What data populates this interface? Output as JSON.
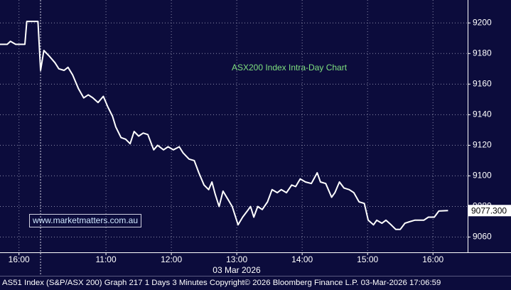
{
  "chart_data": {
    "type": "line",
    "title": "ASX200 Index Intra-Day Chart",
    "watermark": "www.marketmatters.com.au",
    "x_label": "03 Mar 2026",
    "footer": "AS51 Index (S&P/ASX 200) Graph 217 1 Days 3 Minutes Copyright© 2026 Bloomberg Finance L.P. 03-Mar-2026 17:06:59",
    "x": [
      9.38,
      9.49,
      9.54,
      9.62,
      9.76,
      9.79,
      9.96,
      10,
      10.05,
      10.14,
      10.22,
      10.28,
      10.36,
      10.42,
      10.49,
      10.58,
      10.66,
      10.73,
      10.8,
      10.88,
      10.96,
      11.03,
      11.1,
      11.15,
      11.23,
      11.3,
      11.37,
      11.43,
      11.5,
      11.57,
      11.64,
      11.73,
      11.79,
      11.88,
      11.95,
      12.03,
      12.12,
      12.18,
      12.27,
      12.35,
      12.42,
      12.5,
      12.57,
      12.62,
      12.67,
      12.73,
      12.79,
      12.86,
      12.93,
      13.02,
      13.09,
      13.16,
      13.21,
      13.26,
      13.32,
      13.39,
      13.47,
      13.54,
      13.62,
      13.68,
      13.76,
      13.84,
      13.9,
      13.97,
      14.05,
      14.14,
      14.23,
      14.28,
      14.36,
      14.45,
      14.5,
      14.57,
      14.64,
      14.72,
      14.79,
      14.87,
      14.95,
      15.01,
      15.09,
      15.14,
      15.22,
      15.28,
      15.36,
      15.43,
      15.5,
      15.57,
      15.64,
      15.72,
      15.79,
      15.86,
      15.93,
      16.02,
      16.09,
      16.23
    ],
    "series": [
      {
        "name": "AS51 Index",
        "color": "#ffffff",
        "values": [
          9186,
          9186,
          9188,
          9186,
          9186,
          9201,
          9201,
          9169,
          9182,
          9178,
          9174,
          9170,
          9169,
          9171,
          9166,
          9157,
          9151,
          9153,
          9151,
          9148,
          9152,
          9145,
          9139,
          9132,
          9125,
          9124,
          9121,
          9129,
          9126,
          9128,
          9127,
          9117,
          9120,
          9117,
          9119,
          9117,
          9119,
          9115,
          9111,
          9110,
          9102,
          9094,
          9091,
          9096,
          9088,
          9080,
          9090,
          9085,
          9080,
          9068,
          9073,
          9077,
          9080,
          9073,
          9080,
          9078,
          9083,
          9091,
          9089,
          9091,
          9089,
          9094,
          9093,
          9098,
          9096,
          9095,
          9102,
          9096,
          9095,
          9086,
          9089,
          9096,
          9092,
          9091,
          9089,
          9083,
          9082,
          9071,
          9068,
          9071,
          9069,
          9071,
          9068,
          9065,
          9065,
          9069,
          9070,
          9071,
          9071,
          9071,
          9073,
          9073,
          9077,
          9077.3
        ]
      }
    ],
    "last_price": {
      "value": 9077.3,
      "label": "9077.300"
    },
    "xlim": [
      9.38,
      16.53
    ],
    "xticks": [
      {
        "value": 9.67,
        "label": "16:00"
      },
      {
        "value": 11,
        "label": "11:00"
      },
      {
        "value": 12,
        "label": "12:00"
      },
      {
        "value": 13,
        "label": "13:00"
      },
      {
        "value": 14,
        "label": "14:00"
      },
      {
        "value": 15,
        "label": "15:00"
      },
      {
        "value": 16,
        "label": "16:00"
      }
    ],
    "session_start": 10,
    "ylim": [
      9050,
      9215
    ],
    "yticks": [
      9060,
      9080,
      9100,
      9120,
      9140,
      9160,
      9180,
      9200
    ],
    "grid": true
  }
}
